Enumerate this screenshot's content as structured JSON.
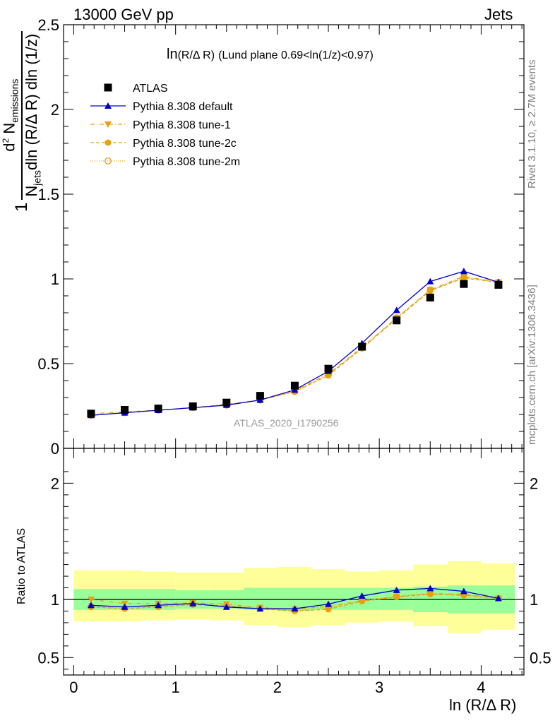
{
  "header": {
    "left": "13000 GeV pp",
    "right": "Jets"
  },
  "side_labels": {
    "rivet": "Rivet 3.1.10, ≥ 2.7M events",
    "mcplots": "mcplots.cern.ch [arXiv:1306.3436]"
  },
  "plot_title": {
    "main": "ln",
    "paren": "(R/Δ R)",
    "rest": "(Lund plane 0.69<ln(1/z)<0.97)"
  },
  "watermark": "ATLAS_2020_I1790256",
  "y_axis_top": {
    "frac_num_prefix": "d",
    "frac_num_sup": "2",
    "frac_num_main": " N",
    "frac_num_sub": "emissions",
    "frac_den_main": "N",
    "frac_den_sub": "jets",
    "frac_den_rest": "dln (R/Δ R) dln (1/z)",
    "prefix": "1"
  },
  "y_axis_bottom": "Ratio to ATLAS",
  "x_axis_label": "ln (R/Δ R)",
  "colors": {
    "atlas": "#000000",
    "default": "#0000cc",
    "tunes": "#e8a10f",
    "band_inner": "#99ff99",
    "band_outer": "#ffff99"
  },
  "chart_data": [
    {
      "type": "scatter",
      "panel": "main",
      "x": [
        0.17,
        0.5,
        0.83,
        1.17,
        1.5,
        1.83,
        2.17,
        2.5,
        2.83,
        3.17,
        3.5,
        3.83,
        4.17
      ],
      "series": [
        {
          "name": "ATLAS",
          "marker": "square",
          "values": [
            0.205,
            0.227,
            0.235,
            0.248,
            0.27,
            0.31,
            0.37,
            0.47,
            0.6,
            0.755,
            0.89,
            0.97,
            0.965
          ]
        },
        {
          "name": "Pythia 8.308 default",
          "marker": "triangle-up",
          "line": "solid",
          "values": [
            0.195,
            0.21,
            0.225,
            0.24,
            0.255,
            0.285,
            0.345,
            0.455,
            0.62,
            0.815,
            0.985,
            1.045,
            0.98
          ]
        },
        {
          "name": "Pythia 8.308 tune-1",
          "marker": "triangle-down",
          "line": "dashdot",
          "values": [
            0.205,
            0.215,
            0.225,
            0.24,
            0.26,
            0.285,
            0.34,
            0.44,
            0.595,
            0.77,
            0.935,
            1.015,
            0.98
          ]
        },
        {
          "name": "Pythia 8.308 tune-2c",
          "marker": "circle",
          "line": "dashed",
          "values": [
            0.195,
            0.21,
            0.225,
            0.24,
            0.255,
            0.285,
            0.335,
            0.43,
            0.59,
            0.765,
            0.93,
            1.005,
            0.98
          ]
        },
        {
          "name": "Pythia 8.308 tune-2m",
          "marker": "circle-open",
          "line": "dotted",
          "values": [
            0.195,
            0.21,
            0.225,
            0.24,
            0.255,
            0.285,
            0.335,
            0.435,
            0.595,
            0.77,
            0.935,
            1.01,
            0.98
          ]
        }
      ],
      "xlim": [
        -0.1,
        4.42
      ],
      "ylim": [
        0,
        2.5
      ],
      "yticks": [
        "0",
        "0.5",
        "1",
        "1.5",
        "2",
        "2.5"
      ]
    },
    {
      "type": "line",
      "panel": "ratio",
      "x": [
        0.17,
        0.5,
        0.83,
        1.17,
        1.5,
        1.83,
        2.17,
        2.5,
        2.83,
        3.17,
        3.5,
        3.83,
        4.17
      ],
      "bin_edges": [
        0,
        0.33,
        0.67,
        1.0,
        1.33,
        1.67,
        2.0,
        2.33,
        2.67,
        3.0,
        3.33,
        3.67,
        4.0,
        4.33
      ],
      "band_inner": [
        [
          0.91,
          1.09
        ],
        [
          0.91,
          1.09
        ],
        [
          0.91,
          1.09
        ],
        [
          0.92,
          1.08
        ],
        [
          0.92,
          1.08
        ],
        [
          0.91,
          1.1
        ],
        [
          0.9,
          1.1
        ],
        [
          0.91,
          1.1
        ],
        [
          0.91,
          1.1
        ],
        [
          0.91,
          1.1
        ],
        [
          0.89,
          1.11
        ],
        [
          0.88,
          1.12
        ],
        [
          0.88,
          1.12
        ]
      ],
      "band_outer": [
        [
          0.81,
          1.25
        ],
        [
          0.81,
          1.25
        ],
        [
          0.82,
          1.24
        ],
        [
          0.83,
          1.23
        ],
        [
          0.82,
          1.23
        ],
        [
          0.78,
          1.27
        ],
        [
          0.76,
          1.28
        ],
        [
          0.78,
          1.26
        ],
        [
          0.8,
          1.24
        ],
        [
          0.81,
          1.25
        ],
        [
          0.77,
          1.3
        ],
        [
          0.71,
          1.33
        ],
        [
          0.74,
          1.31
        ]
      ],
      "series": [
        {
          "name": "Pythia 8.308 default",
          "values": [
            0.95,
            0.935,
            0.95,
            0.965,
            0.935,
            0.92,
            0.92,
            0.96,
            1.03,
            1.08,
            1.095,
            1.07,
            1.01
          ]
        },
        {
          "name": "Pythia 8.308 tune-1",
          "values": [
            1.0,
            0.965,
            0.965,
            0.97,
            0.96,
            0.93,
            0.915,
            0.94,
            0.99,
            1.025,
            1.05,
            1.045,
            1.01
          ]
        },
        {
          "name": "Pythia 8.308 tune-2c",
          "values": [
            0.935,
            0.92,
            0.935,
            0.955,
            0.945,
            0.92,
            0.9,
            0.915,
            0.985,
            1.02,
            1.045,
            1.035,
            1.01
          ]
        },
        {
          "name": "Pythia 8.308 tune-2m",
          "values": [
            0.94,
            0.925,
            0.94,
            0.96,
            0.945,
            0.925,
            0.905,
            0.925,
            0.99,
            1.025,
            1.05,
            1.04,
            1.01
          ]
        }
      ],
      "xlim": [
        -0.1,
        4.42
      ],
      "ylim": [
        0.35,
        2.3
      ],
      "yticks": [
        "0.5",
        "1",
        "2"
      ],
      "xticks": [
        "0",
        "1",
        "2",
        "3",
        "4"
      ]
    }
  ]
}
